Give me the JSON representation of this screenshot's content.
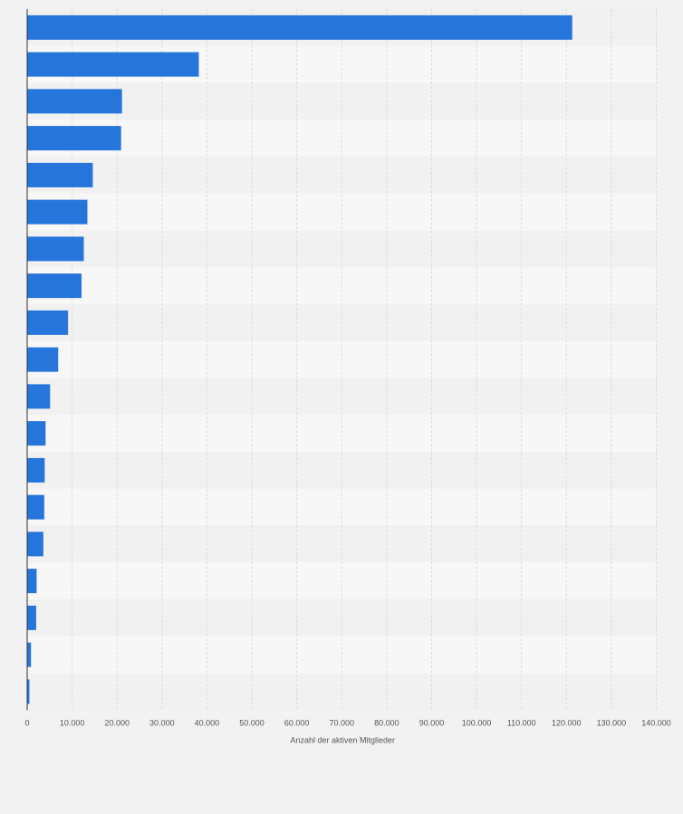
{
  "chart_data": {
    "type": "bar",
    "orientation": "horizontal",
    "title": "",
    "xlabel": "Anzahl der aktiven Mitglieder",
    "ylabel": "",
    "categories": [
      "",
      "",
      "",
      "",
      "",
      "",
      "",
      "",
      "",
      "",
      "",
      "",
      "",
      "",
      "",
      "",
      "",
      "",
      ""
    ],
    "values": [
      121300,
      38200,
      21100,
      20900,
      14600,
      13400,
      12600,
      12100,
      9100,
      6900,
      5100,
      4100,
      3900,
      3800,
      3600,
      2100,
      2000,
      850,
      500
    ],
    "xlim": [
      0,
      140000
    ],
    "xticks": [
      0,
      10000,
      20000,
      30000,
      40000,
      50000,
      60000,
      70000,
      80000,
      90000,
      100000,
      110000,
      120000,
      130000,
      140000
    ],
    "xtick_labels": [
      "0",
      "10.000",
      "20.000",
      "30.000",
      "40.000",
      "50.000",
      "60.000",
      "70.000",
      "80.000",
      "90.000",
      "100.000",
      "110.000",
      "120.000",
      "130.000",
      "140.000"
    ],
    "grid": true,
    "legend": "none",
    "colors": {
      "bar": "#2575db",
      "band_light": "#f7f7f7",
      "band_dark": "#f1f1f1",
      "gridline": "#dcdcdc",
      "axis": "#333333",
      "background": "#f2f2f2"
    }
  }
}
